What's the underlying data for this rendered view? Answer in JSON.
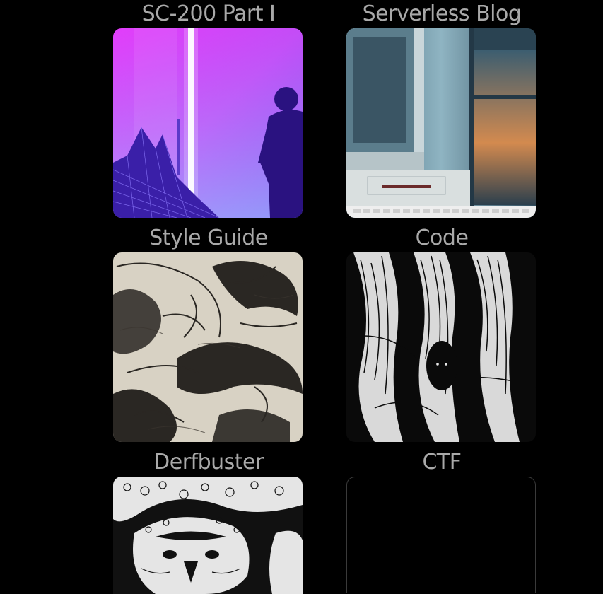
{
  "cards": [
    {
      "title": "SC-200 Part I",
      "thumbnail": "synthwave-astronaut-image"
    },
    {
      "title": "Serverless Blog",
      "thumbnail": "retro-computer-image"
    },
    {
      "title": "Style Guide",
      "thumbnail": "etching-sketch-image"
    },
    {
      "title": "Code",
      "thumbnail": "ink-forest-image"
    },
    {
      "title": "Derfbuster",
      "thumbnail": "ink-creature-image"
    },
    {
      "title": "CTF",
      "thumbnail": "blank-image"
    }
  ],
  "colors": {
    "background": "#000000",
    "title_text": "#a9a9a9"
  }
}
